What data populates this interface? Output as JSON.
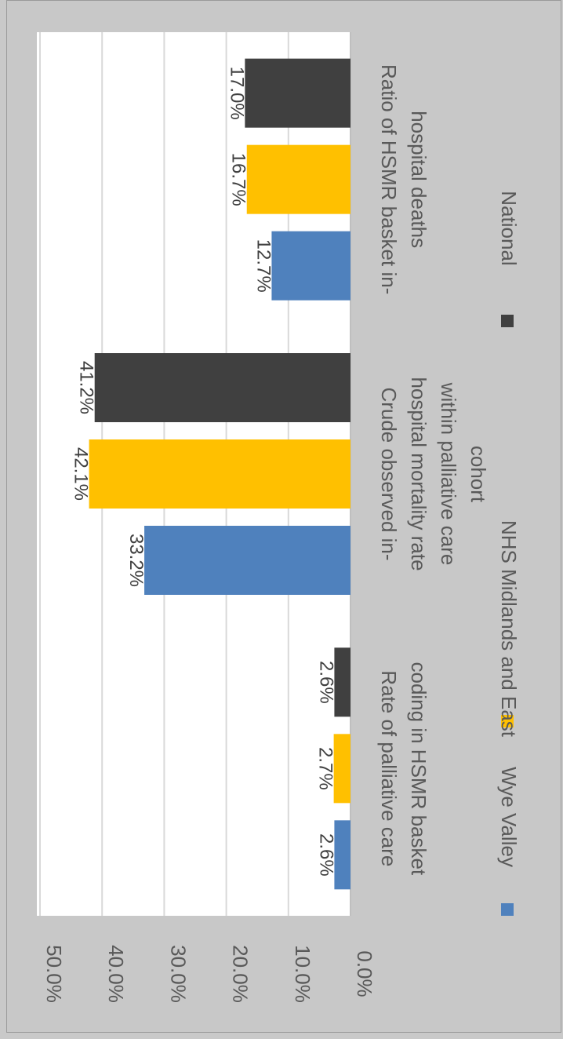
{
  "chart_data": {
    "type": "bar",
    "orientation": "rotated-90-clockwise",
    "categories": [
      "Rate of palliative care coding in HSMR basket",
      "Crude observed in-hospital mortality rate within palliative care cohort",
      "Ratio of HSMR basket in-hospital deaths"
    ],
    "category_lines": [
      [
        "Rate of palliative care",
        "coding in HSMR basket"
      ],
      [
        "Crude observed in-",
        "hospital mortality rate",
        "within palliative care",
        "cohort"
      ],
      [
        "Ratio of HSMR basket in-",
        "hospital deaths"
      ]
    ],
    "series": [
      {
        "name": "Wye Valley",
        "values": [
          2.6,
          33.2,
          12.7
        ],
        "labels": [
          "2.6%",
          "33.2%",
          "12.7%"
        ],
        "color": "#4f81bd"
      },
      {
        "name": "NHS Midlands  and East",
        "values": [
          2.7,
          42.1,
          16.7
        ],
        "labels": [
          "2.7%",
          "42.1%",
          "16.7%"
        ],
        "color": "#ffc000"
      },
      {
        "name": "National",
        "values": [
          2.6,
          41.2,
          17.0
        ],
        "labels": [
          "2.6%",
          "41.2%",
          "17.0%"
        ],
        "color": "#404040"
      }
    ],
    "ylim": [
      0,
      50
    ],
    "yticks": [
      0,
      10,
      20,
      30,
      40,
      50
    ],
    "ytick_labels": [
      "0.0%",
      "10.0%",
      "20.0%",
      "30.0%",
      "40.0%",
      "50.0%"
    ],
    "grid": true,
    "legend_position": "bottom"
  }
}
